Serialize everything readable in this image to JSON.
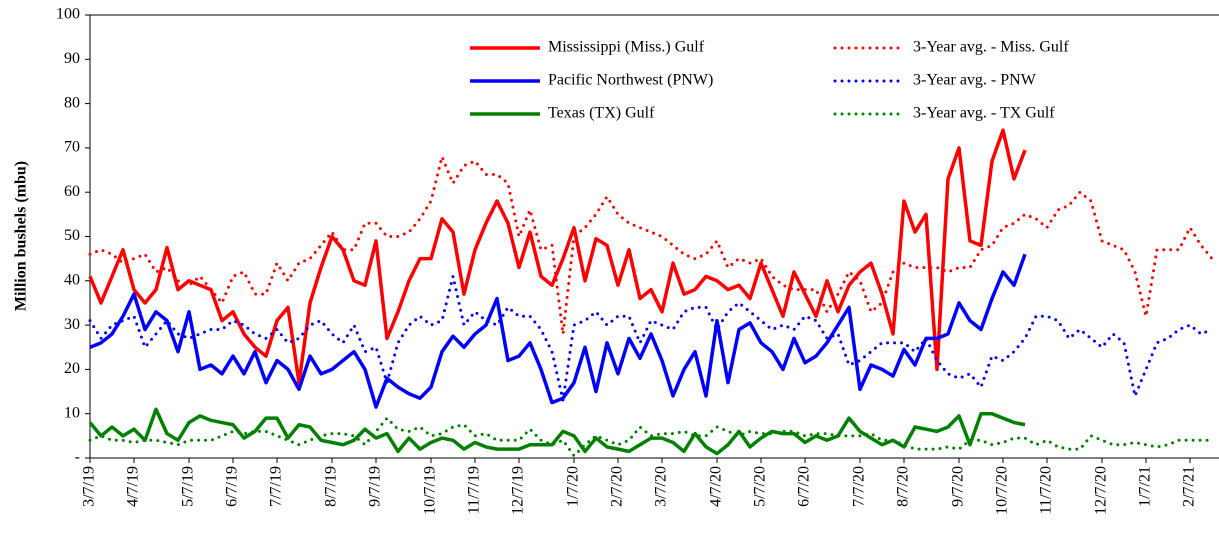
{
  "chart_data": {
    "type": "line",
    "ylabel": "Million bushels (mbu)",
    "ylim": [
      0,
      100
    ],
    "yticks": [
      {
        "value": 0,
        "label": "-"
      },
      10,
      20,
      30,
      40,
      50,
      60,
      70,
      80,
      90,
      100
    ],
    "grid": false,
    "categories": [
      "3/7/19",
      null,
      null,
      null,
      "4/7/19",
      null,
      null,
      null,
      null,
      "5/7/19",
      null,
      null,
      null,
      "6/7/19",
      null,
      null,
      null,
      "7/7/19",
      null,
      null,
      null,
      null,
      "8/7/19",
      null,
      null,
      null,
      "9/7/19",
      null,
      null,
      null,
      null,
      "10/7/19",
      null,
      null,
      null,
      "11/7/19",
      null,
      null,
      null,
      "12/7/19",
      null,
      null,
      null,
      null,
      "1/7/20",
      null,
      null,
      null,
      "2/7/20",
      null,
      null,
      null,
      "3/7/20",
      null,
      null,
      null,
      null,
      "4/7/20",
      null,
      null,
      null,
      "5/7/20",
      null,
      null,
      null,
      "6/7/20",
      null,
      null,
      null,
      null,
      "7/7/20",
      null,
      null,
      null,
      "8/7/20",
      null,
      null,
      null,
      null,
      "9/7/20",
      null,
      null,
      null,
      "10/7/20",
      null,
      null,
      null,
      "11/7/20",
      null,
      null,
      null,
      null,
      "12/7/20",
      null,
      null,
      null,
      "1/7/21",
      null,
      null,
      null,
      "2/7/21",
      null,
      null
    ],
    "series": [
      {
        "name": "Mississippi (Miss.) Gulf",
        "color": "#ff0000",
        "dash": "solid",
        "values": [
          41,
          35,
          41,
          47,
          38,
          35,
          38,
          47.5,
          38,
          40,
          39,
          38,
          31,
          33,
          28,
          25,
          23,
          31,
          34,
          17,
          35,
          43,
          50,
          47,
          40,
          39,
          49,
          27,
          33,
          40,
          45,
          45,
          54,
          51,
          37,
          47,
          53,
          58,
          53,
          43,
          51,
          41,
          39,
          45,
          52,
          40,
          49.5,
          48,
          39,
          47,
          36,
          38,
          33,
          44,
          37,
          38,
          41,
          40,
          38,
          39,
          36,
          44,
          38,
          32,
          42,
          37,
          32,
          40,
          33,
          39,
          42,
          44,
          37,
          28,
          58,
          51,
          55,
          20,
          63,
          70,
          49,
          48,
          67,
          74,
          63,
          69.5,
          null,
          null,
          null,
          null,
          null,
          null,
          null,
          null,
          null,
          null,
          null,
          null,
          null,
          null,
          null,
          null,
          null
        ]
      },
      {
        "name": "Pacific Northwest (PNW)",
        "color": "#0000ff",
        "dash": "solid",
        "values": [
          25,
          26,
          28,
          32,
          37,
          29,
          33,
          31,
          24,
          33,
          20,
          21,
          19,
          23,
          19,
          24,
          17,
          22,
          20,
          15.5,
          23,
          19,
          20,
          22,
          24,
          20,
          11.5,
          18,
          16,
          14.5,
          13.5,
          16,
          24,
          27.5,
          25,
          28,
          30,
          36,
          22,
          23,
          26,
          20,
          12.5,
          13.5,
          17,
          25,
          15,
          26,
          19,
          27,
          22.5,
          28,
          22,
          14,
          20,
          24,
          14,
          31,
          17,
          29,
          30.5,
          26,
          24,
          20,
          27,
          21.5,
          23,
          26,
          30,
          34,
          15.5,
          21,
          20,
          18.5,
          24.5,
          21,
          27,
          27,
          28,
          35,
          31,
          29,
          36,
          42,
          39,
          46,
          null,
          null,
          null,
          null,
          null,
          null,
          null,
          null,
          null,
          null,
          null,
          null,
          null,
          null,
          null,
          null,
          null
        ]
      },
      {
        "name": "Texas (TX) Gulf",
        "color": "#008000",
        "dash": "solid",
        "values": [
          8,
          5,
          7,
          5,
          6.5,
          4,
          11,
          5.5,
          4,
          8,
          9.5,
          8.5,
          8,
          7.5,
          4.5,
          6,
          9,
          9,
          4.5,
          7.5,
          7,
          4,
          3.5,
          3,
          4,
          6.5,
          4.5,
          5.5,
          1.5,
          4.5,
          2,
          3.5,
          4.5,
          4,
          2,
          3.5,
          2.5,
          2,
          2,
          2,
          3,
          3,
          3,
          6,
          5,
          1.5,
          4.5,
          2.5,
          2,
          1.5,
          3,
          4.5,
          4.5,
          3.5,
          1.5,
          5.5,
          2.5,
          1,
          3,
          6,
          2.5,
          4.5,
          6,
          5.5,
          5.5,
          3.5,
          5,
          4,
          5,
          9,
          6,
          4.5,
          3,
          4,
          2.5,
          7,
          6.5,
          6,
          7,
          9.5,
          3,
          10,
          10,
          9,
          8,
          7.5,
          null,
          null,
          null,
          null,
          null,
          null,
          null,
          null,
          null,
          null,
          null,
          null,
          null,
          null,
          null,
          null,
          null
        ]
      },
      {
        "name": "3-Year avg. - Miss. Gulf",
        "color": "#ff0000",
        "dash": "dotted",
        "values": [
          46,
          47,
          46,
          44,
          45,
          46,
          42,
          43,
          40,
          39,
          41,
          38,
          35,
          41,
          42,
          37,
          37,
          44,
          40,
          44,
          45,
          48,
          51,
          47,
          47,
          53,
          53,
          50,
          50,
          51,
          54,
          58,
          68,
          62,
          66,
          67,
          64,
          64,
          62,
          50,
          56,
          47,
          48,
          28,
          50,
          52,
          55,
          59,
          55,
          53,
          52,
          51,
          50,
          48,
          46,
          45,
          46,
          49,
          43,
          45,
          44,
          45,
          41,
          39,
          38,
          38,
          38,
          33,
          37,
          42,
          40,
          33,
          35,
          42,
          44,
          43,
          43,
          43,
          42,
          43,
          43,
          47,
          48,
          52,
          53,
          55,
          54,
          52,
          56,
          57,
          60,
          58,
          49,
          48,
          47,
          42,
          32,
          47,
          47,
          47,
          52,
          48,
          45
        ]
      },
      {
        "name": "3-Year avg. - PNW",
        "color": "#0000ff",
        "dash": "dotted",
        "values": [
          31,
          27,
          30,
          31,
          32,
          25,
          28,
          31,
          28,
          27,
          28,
          29,
          29,
          31,
          30,
          28,
          27,
          29,
          26,
          27,
          30,
          31,
          28,
          26,
          30,
          24,
          25,
          17,
          26,
          30,
          32,
          30,
          31,
          41,
          30,
          33,
          31,
          30,
          34,
          32,
          32,
          29,
          24,
          13,
          30,
          31,
          33,
          30,
          32,
          32,
          26,
          31,
          30,
          29,
          33,
          34,
          34,
          29,
          33,
          35,
          33,
          31,
          29,
          30,
          29,
          32,
          31,
          27,
          28,
          21,
          22,
          24,
          26,
          26,
          26,
          24,
          27,
          22,
          19,
          18,
          19,
          16,
          23,
          22,
          24,
          27,
          32,
          32,
          31,
          27,
          29,
          27,
          25,
          28,
          26,
          14,
          20,
          26,
          27,
          29,
          30,
          28,
          29
        ]
      },
      {
        "name": "3-Year avg. - TX Gulf",
        "color": "#008000",
        "dash": "dotted",
        "values": [
          4,
          5,
          4,
          4,
          3.5,
          4,
          4,
          3.5,
          3,
          4,
          4,
          4,
          5,
          6,
          5.5,
          6,
          6,
          5,
          4,
          3,
          4,
          5,
          5.5,
          5.5,
          5,
          3,
          6,
          9,
          6.5,
          6,
          7,
          5,
          5.5,
          7,
          7.5,
          5,
          5.5,
          4,
          4,
          4,
          6.5,
          4,
          3,
          4,
          0.5,
          3,
          5,
          4,
          3,
          4,
          7,
          5,
          5.5,
          5.5,
          6,
          5,
          5,
          7,
          6,
          5,
          6,
          5.5,
          5.5,
          6,
          6,
          5,
          5.5,
          5.5,
          5,
          5,
          5,
          5.5,
          4,
          4,
          3,
          2,
          2,
          2,
          2.5,
          2,
          4,
          4,
          3,
          3.5,
          4.5,
          4.5,
          3,
          4,
          2.5,
          2,
          2,
          5,
          4,
          3,
          3,
          3.5,
          3,
          2.5,
          3,
          4,
          4,
          4,
          4
        ]
      }
    ]
  }
}
